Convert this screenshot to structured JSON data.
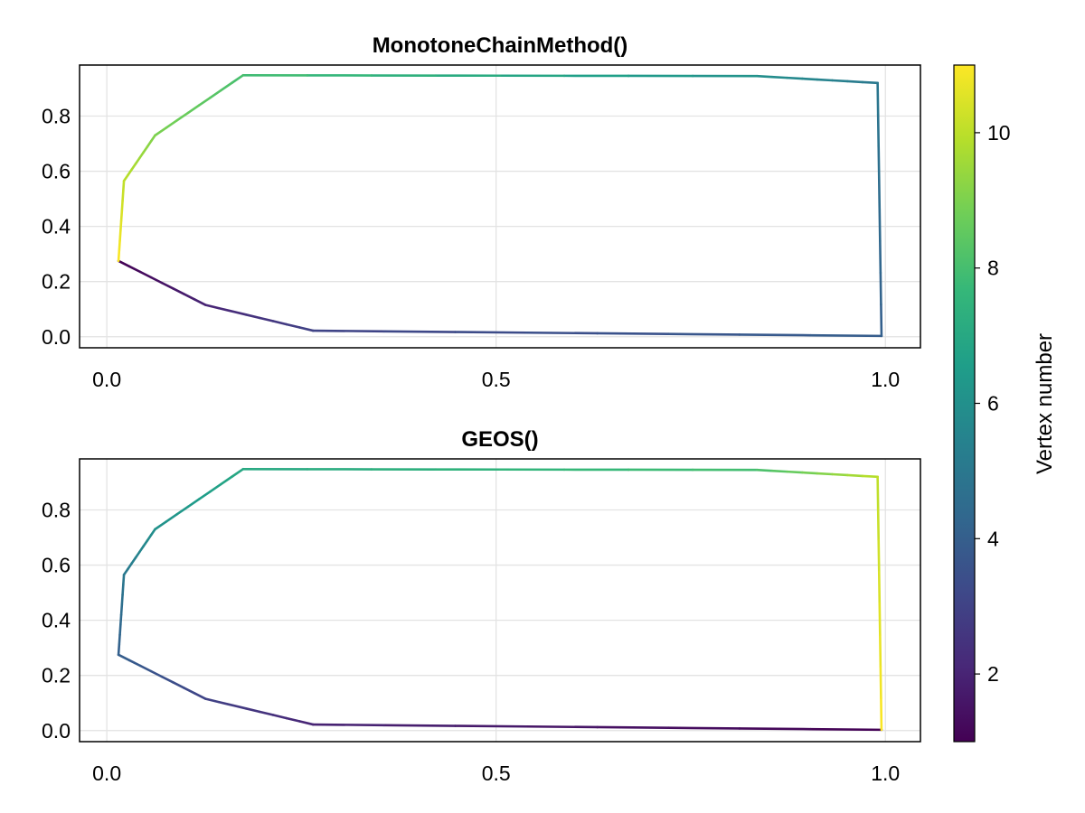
{
  "chart_data": [
    {
      "type": "line",
      "title": "MonotoneChainMethod()",
      "xlabel": "",
      "ylabel": "",
      "xlim": [
        -0.035,
        1.045
      ],
      "ylim": [
        -0.04,
        0.985
      ],
      "x_ticks": [
        0.0,
        0.5,
        1.0
      ],
      "x_tick_labels": [
        "0.0",
        "0.5",
        "1.0"
      ],
      "y_ticks": [
        0.0,
        0.2,
        0.4,
        0.6,
        0.8
      ],
      "y_tick_labels": [
        "0.0",
        "0.2",
        "0.4",
        "0.6",
        "0.8"
      ],
      "grid": true,
      "color_by": "vertex number",
      "points": [
        {
          "x": 0.015,
          "y": 0.275,
          "v": 1
        },
        {
          "x": 0.127,
          "y": 0.115,
          "v": 2
        },
        {
          "x": 0.265,
          "y": 0.022,
          "v": 3
        },
        {
          "x": 0.995,
          "y": 0.003,
          "v": 4
        },
        {
          "x": 0.99,
          "y": 0.92,
          "v": 5
        },
        {
          "x": 0.835,
          "y": 0.945,
          "v": 6
        },
        {
          "x": 0.175,
          "y": 0.948,
          "v": 8
        },
        {
          "x": 0.062,
          "y": 0.73,
          "v": 9
        },
        {
          "x": 0.022,
          "y": 0.565,
          "v": 10
        },
        {
          "x": 0.015,
          "y": 0.275,
          "v": 11
        }
      ]
    },
    {
      "type": "line",
      "title": "GEOS()",
      "xlabel": "",
      "ylabel": "",
      "xlim": [
        -0.035,
        1.045
      ],
      "ylim": [
        -0.04,
        0.985
      ],
      "x_ticks": [
        0.0,
        0.5,
        1.0
      ],
      "x_tick_labels": [
        "0.0",
        "0.5",
        "1.0"
      ],
      "y_ticks": [
        0.0,
        0.2,
        0.4,
        0.6,
        0.8
      ],
      "y_tick_labels": [
        "0.0",
        "0.2",
        "0.4",
        "0.6",
        "0.8"
      ],
      "grid": true,
      "color_by": "vertex number",
      "points": [
        {
          "x": 0.995,
          "y": 0.003,
          "v": 1
        },
        {
          "x": 0.265,
          "y": 0.022,
          "v": 2
        },
        {
          "x": 0.127,
          "y": 0.115,
          "v": 3
        },
        {
          "x": 0.015,
          "y": 0.275,
          "v": 4
        },
        {
          "x": 0.022,
          "y": 0.565,
          "v": 5
        },
        {
          "x": 0.062,
          "y": 0.73,
          "v": 6
        },
        {
          "x": 0.175,
          "y": 0.948,
          "v": 7
        },
        {
          "x": 0.835,
          "y": 0.945,
          "v": 8
        },
        {
          "x": 0.99,
          "y": 0.92,
          "v": 10
        },
        {
          "x": 0.995,
          "y": 0.003,
          "v": 11
        }
      ]
    }
  ],
  "colorbar": {
    "label": "Vertex number",
    "colormap": "viridis",
    "range": [
      1,
      11
    ],
    "ticks": [
      2,
      4,
      6,
      8,
      10
    ],
    "tick_labels": [
      "2",
      "4",
      "6",
      "8",
      "10"
    ],
    "colors": [
      "#440154",
      "#482878",
      "#3e4989",
      "#31688e",
      "#26828e",
      "#1f9e89",
      "#35b779",
      "#6ece58",
      "#b5de2b",
      "#fde725"
    ]
  }
}
